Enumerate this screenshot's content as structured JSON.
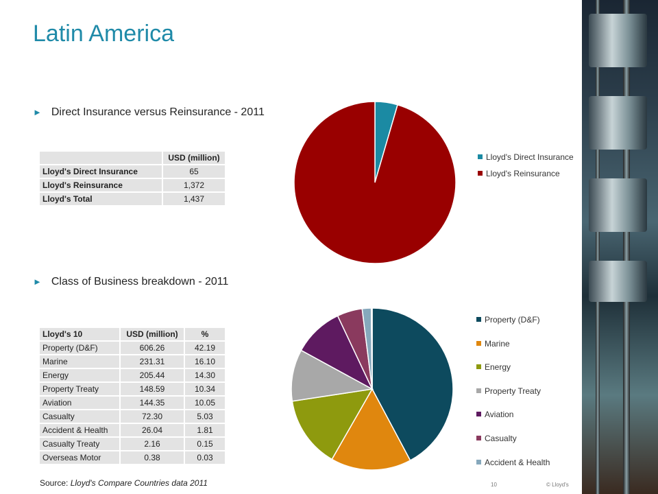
{
  "title": "Latin America",
  "section1": {
    "heading": "Direct Insurance versus Reinsurance - 2011"
  },
  "section2": {
    "heading": "Class of Business breakdown - 2011"
  },
  "table1": {
    "header": [
      "",
      "USD (million)"
    ],
    "rows": [
      {
        "label": "Lloyd's Direct Insurance",
        "value": "65"
      },
      {
        "label": "Lloyd's Reinsurance",
        "value": "1,372"
      },
      {
        "label": "Lloyd's Total",
        "value": "1,437"
      }
    ]
  },
  "table2": {
    "header": [
      "Lloyd's 10",
      "USD (million)",
      "%"
    ],
    "rows": [
      {
        "label": "Property (D&F)",
        "usd": "606.26",
        "pct": "42.19"
      },
      {
        "label": "Marine",
        "usd": "231.31",
        "pct": "16.10"
      },
      {
        "label": "Energy",
        "usd": "205.44",
        "pct": "14.30"
      },
      {
        "label": "Property Treaty",
        "usd": "148.59",
        "pct": "10.34"
      },
      {
        "label": "Aviation",
        "usd": "144.35",
        "pct": "10.05"
      },
      {
        "label": "Casualty",
        "usd": "72.30",
        "pct": "5.03"
      },
      {
        "label": "Accident & Health",
        "usd": "26.04",
        "pct": "1.81"
      },
      {
        "label": "Casualty Treaty",
        "usd": "2.16",
        "pct": "0.15"
      },
      {
        "label": "Overseas Motor",
        "usd": "0.38",
        "pct": "0.03"
      }
    ]
  },
  "chart_data": [
    {
      "type": "pie",
      "title": "",
      "categories": [
        "Lloyd's Direct Insurance",
        "Lloyd's Reinsurance"
      ],
      "values": [
        65,
        1372
      ],
      "colors": [
        "#1b8aa3",
        "#990000"
      ],
      "legend_placement": "right"
    },
    {
      "type": "pie",
      "title": "",
      "categories": [
        "Property (D&F)",
        "Marine",
        "Energy",
        "Property Treaty",
        "Aviation",
        "Casualty",
        "Accident & Health",
        "Casualty Treaty",
        "Overseas Motor"
      ],
      "values": [
        606.26,
        231.31,
        205.44,
        148.59,
        144.35,
        72.3,
        26.04,
        2.16,
        0.38
      ],
      "colors": [
        "#0d4a5e",
        "#e0870e",
        "#8e9a0e",
        "#a8a8a8",
        "#5e1a60",
        "#8a3a5e",
        "#86a8bc",
        "#3a6a8a",
        "#2a2a2a"
      ],
      "legend_entries": [
        "Property (D&F)",
        "Marine",
        "Energy",
        "Property Treaty",
        "Aviation",
        "Casualty",
        "Accident & Health"
      ],
      "legend_placement": "right"
    }
  ],
  "footer": {
    "source_label": "Source:",
    "source_text": "Lloyd's Compare Countries data 2011",
    "page_number": "10",
    "copyright": "© Lloyd's"
  }
}
